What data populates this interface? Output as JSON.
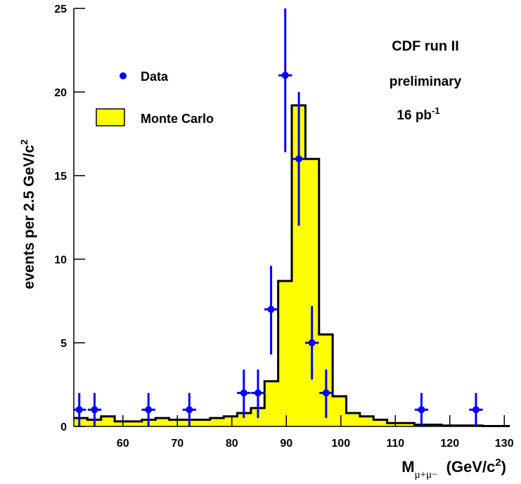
{
  "chart_data": {
    "type": "histogram",
    "bins": [
      51,
      53.5,
      56,
      58.5,
      61,
      63.5,
      66,
      68.5,
      71,
      73.5,
      76,
      78.5,
      81,
      83.5,
      86,
      88.5,
      91,
      93.5,
      96,
      98.5,
      101,
      103.5,
      106,
      108.5,
      111,
      113.5,
      116,
      118.5,
      121,
      123.5,
      126,
      128.5,
      131
    ],
    "series": [
      {
        "name": "Monte Carlo",
        "color": "#ffff00",
        "values": [
          0.5,
          0.4,
          0.6,
          0.3,
          0.3,
          0.4,
          0.5,
          0.4,
          0.4,
          0.4,
          0.5,
          0.6,
          0.8,
          1.1,
          2.7,
          8.7,
          19.2,
          16,
          5.5,
          1.8,
          0.8,
          0.6,
          0.4,
          0.2,
          0.2,
          0.1,
          0.1,
          0.05,
          0.05,
          0.05,
          0.02,
          0.02
        ]
      }
    ],
    "points": {
      "name": "Data",
      "color": "#0000ff",
      "x": [
        52,
        54.8,
        64.7,
        72.2,
        82.2,
        84.8,
        87.2,
        89.8,
        92.3,
        94.7,
        97.3,
        114.8,
        124.8
      ],
      "values": [
        1,
        1,
        1,
        1,
        2,
        2,
        7,
        21,
        16,
        5,
        2,
        1,
        1
      ],
      "xerr": [
        1.25,
        1.25,
        1.25,
        1.25,
        1.25,
        1.25,
        1.25,
        1.25,
        1.25,
        1.25,
        1.25,
        1.25,
        1.25
      ],
      "yerr_low": [
        1,
        1,
        1,
        1,
        1.5,
        1.5,
        2.7,
        4.6,
        4,
        2.2,
        1.5,
        1,
        1
      ],
      "yerr_high": [
        1,
        1,
        1,
        1,
        1.4,
        1.4,
        2.6,
        4.6,
        4,
        2.2,
        1.4,
        1,
        1
      ]
    },
    "xlim": [
      51,
      131
    ],
    "xticks": [
      60,
      70,
      80,
      90,
      100,
      110,
      120,
      130
    ],
    "ylim": [
      0,
      25
    ],
    "yticks": [
      0,
      5,
      10,
      15,
      20,
      25
    ],
    "x_label": "M",
    "x_label_sub": "μ+μ−",
    "x_label_unit": "(GeV/c",
    "x_label_sup": "2",
    "x_label_close": ")",
    "y_label": "events per 2.5 GeV/c",
    "y_label_sup": "2",
    "annotations": {
      "line1": "CDF run II",
      "line2": "preliminary",
      "lumi": "16 pb",
      "lumi_sup": "-1"
    }
  }
}
